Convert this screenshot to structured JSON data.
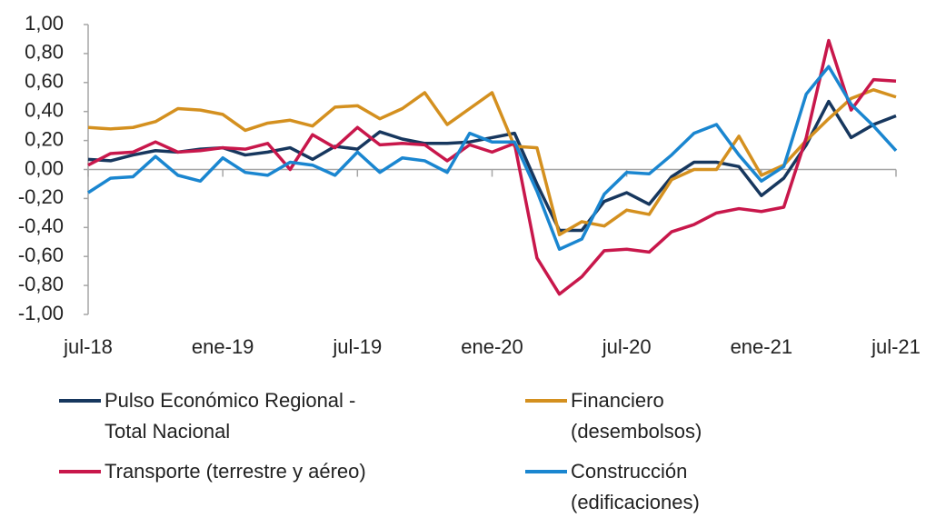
{
  "chart_data": {
    "type": "line",
    "categories": [
      "jul-18",
      null,
      null,
      null,
      null,
      null,
      "ene-19",
      null,
      null,
      null,
      null,
      null,
      "jul-19",
      null,
      null,
      null,
      null,
      null,
      "ene-20",
      null,
      null,
      null,
      null,
      null,
      "jul-20",
      null,
      null,
      null,
      null,
      null,
      "ene-21",
      null,
      null,
      null,
      null,
      null,
      "jul-21"
    ],
    "series": [
      {
        "name": "Pulso Económico Regional - Total Nacional",
        "color": "#17375e",
        "values": [
          0.07,
          0.06,
          0.1,
          0.13,
          0.12,
          0.14,
          0.15,
          0.1,
          0.12,
          0.15,
          0.07,
          0.16,
          0.14,
          0.26,
          0.21,
          0.18,
          0.18,
          0.19,
          0.22,
          0.25,
          -0.1,
          -0.42,
          -0.42,
          -0.22,
          -0.16,
          -0.24,
          -0.05,
          0.05,
          0.05,
          0.02,
          -0.18,
          -0.06,
          0.17,
          0.47,
          0.22,
          0.31,
          0.37
        ]
      },
      {
        "name": "Financiero (desembolsos)",
        "color": "#d4901f",
        "values": [
          0.29,
          0.28,
          0.29,
          0.33,
          0.42,
          0.41,
          0.38,
          0.27,
          0.32,
          0.34,
          0.3,
          0.43,
          0.44,
          0.35,
          0.42,
          0.53,
          0.31,
          0.42,
          0.53,
          0.16,
          0.15,
          -0.45,
          -0.36,
          -0.39,
          -0.28,
          -0.31,
          -0.07,
          0.0,
          0.0,
          0.23,
          -0.04,
          0.03,
          0.2,
          0.35,
          0.49,
          0.55,
          0.5
        ]
      },
      {
        "name": "Transporte (terrestre y aéreo)",
        "color": "#c8174b",
        "values": [
          0.03,
          0.11,
          0.12,
          0.19,
          0.12,
          0.13,
          0.15,
          0.14,
          0.18,
          0.0,
          0.24,
          0.15,
          0.29,
          0.17,
          0.18,
          0.17,
          0.06,
          0.17,
          0.12,
          0.18,
          -0.61,
          -0.86,
          -0.74,
          -0.56,
          -0.55,
          -0.57,
          -0.43,
          -0.38,
          -0.3,
          -0.27,
          -0.29,
          -0.26,
          0.22,
          0.89,
          0.41,
          0.62,
          0.61
        ]
      },
      {
        "name": "Construcción (edificaciones)",
        "color": "#1a86d0",
        "values": [
          -0.16,
          -0.06,
          -0.05,
          0.09,
          -0.04,
          -0.08,
          0.08,
          -0.02,
          -0.04,
          0.05,
          0.03,
          -0.04,
          0.12,
          -0.02,
          0.08,
          0.06,
          -0.02,
          0.25,
          0.19,
          0.19,
          -0.15,
          -0.55,
          -0.48,
          -0.17,
          -0.02,
          -0.03,
          0.1,
          0.25,
          0.31,
          0.1,
          -0.08,
          0.02,
          0.52,
          0.71,
          0.45,
          0.3,
          0.13
        ]
      }
    ],
    "ylim": [
      -1,
      1
    ],
    "yticks": [
      {
        "value": 1,
        "label": "1,00"
      },
      {
        "value": 0.8,
        "label": "0,80"
      },
      {
        "value": 0.6,
        "label": "0,60"
      },
      {
        "value": 0.4,
        "label": "0,40"
      },
      {
        "value": 0.2,
        "label": "0,20"
      },
      {
        "value": 0,
        "label": "0,00"
      },
      {
        "value": -0.2,
        "label": "-0,20"
      },
      {
        "value": -0.4,
        "label": "-0,40"
      },
      {
        "value": -0.6,
        "label": "-0,60"
      },
      {
        "value": -0.8,
        "label": "-0,80"
      },
      {
        "value": -1,
        "label": "-1,00"
      }
    ],
    "grid": false
  }
}
